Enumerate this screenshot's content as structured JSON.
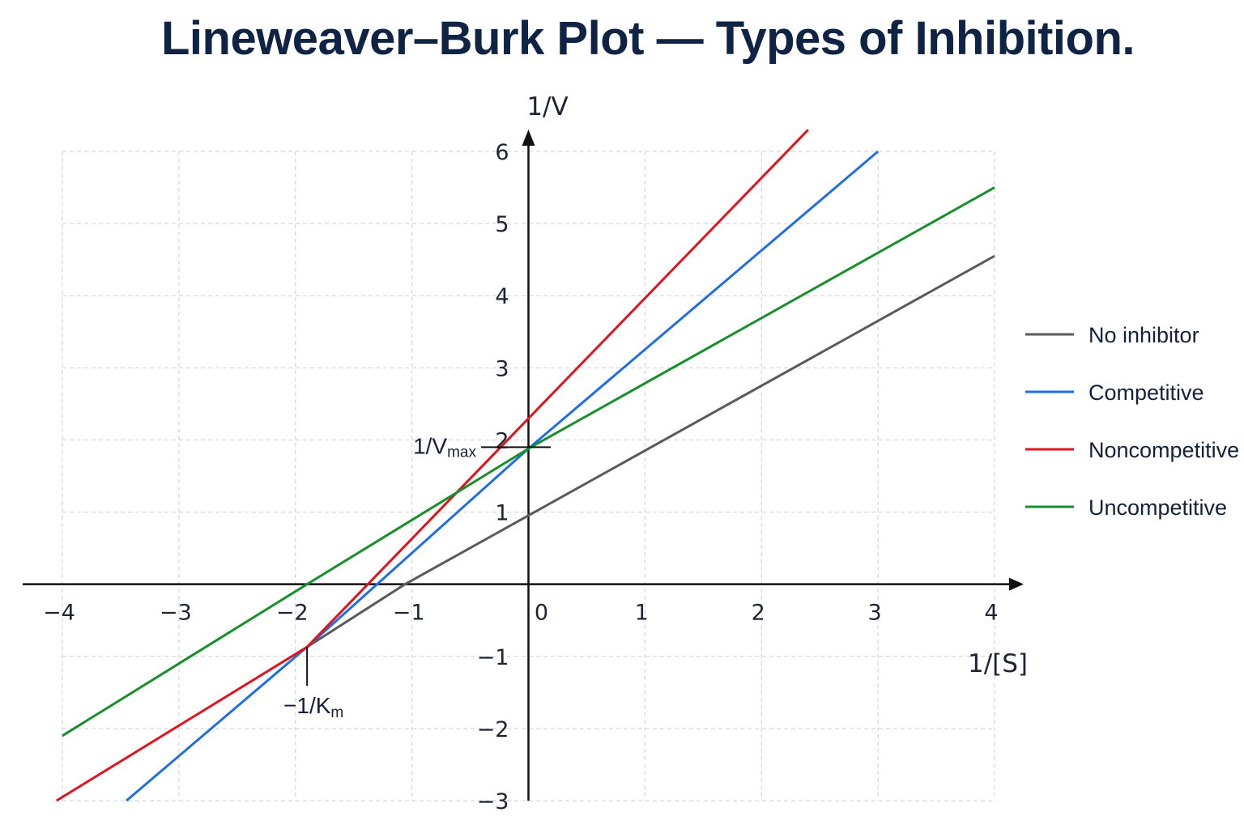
{
  "chart_data": {
    "type": "line",
    "title": "Lineweaver–Burk Plot — Types of Inhibition.",
    "xlabel": "1/[S]",
    "ylabel": "1/V",
    "xlim": [
      -4,
      4
    ],
    "ylim": [
      -3,
      6
    ],
    "xticks": [
      -4,
      -3,
      -2,
      -1,
      0,
      1,
      2,
      3,
      4
    ],
    "yticks": [
      -3,
      -2,
      -1,
      1,
      2,
      3,
      4,
      5,
      6
    ],
    "xtick_labels": [
      "−4",
      "−3",
      "−2",
      "−1",
      "0",
      "1",
      "2",
      "3",
      "4"
    ],
    "ytick_labels": [
      "−3",
      "−2",
      "−1",
      "1",
      "2",
      "3",
      "4",
      "5",
      "6"
    ],
    "grid": true,
    "legend_position": "right",
    "series": [
      {
        "name": "No inhibitor",
        "color": "#5a5a5a",
        "x": [
          -1.9,
          -1.06,
          4.0
        ],
        "y": [
          -0.87,
          0.0,
          4.55
        ]
      },
      {
        "name": "Competitive",
        "color": "#1f6ee8",
        "x": [
          -3.45,
          -1.9,
          0.0,
          3.0
        ],
        "y": [
          -3.0,
          -0.87,
          1.88,
          6.0
        ]
      },
      {
        "name": "Noncompetitive",
        "color": "#e0141e",
        "x": [
          -4.05,
          -1.9,
          2.4
        ],
        "y": [
          -3.0,
          -0.87,
          6.3
        ]
      },
      {
        "name": "Uncompetitive",
        "color": "#17902b",
        "x": [
          -4.0,
          -1.9,
          0.0,
          4.0
        ],
        "y": [
          -2.1,
          0.0,
          1.88,
          5.5
        ]
      }
    ],
    "annotations": {
      "vmax": {
        "prefix": "1/V",
        "subscript": "max",
        "y": 1.9
      },
      "km": {
        "prefix": "−1/K",
        "subscript": "m",
        "x": -1.9,
        "y": -0.87
      }
    }
  }
}
